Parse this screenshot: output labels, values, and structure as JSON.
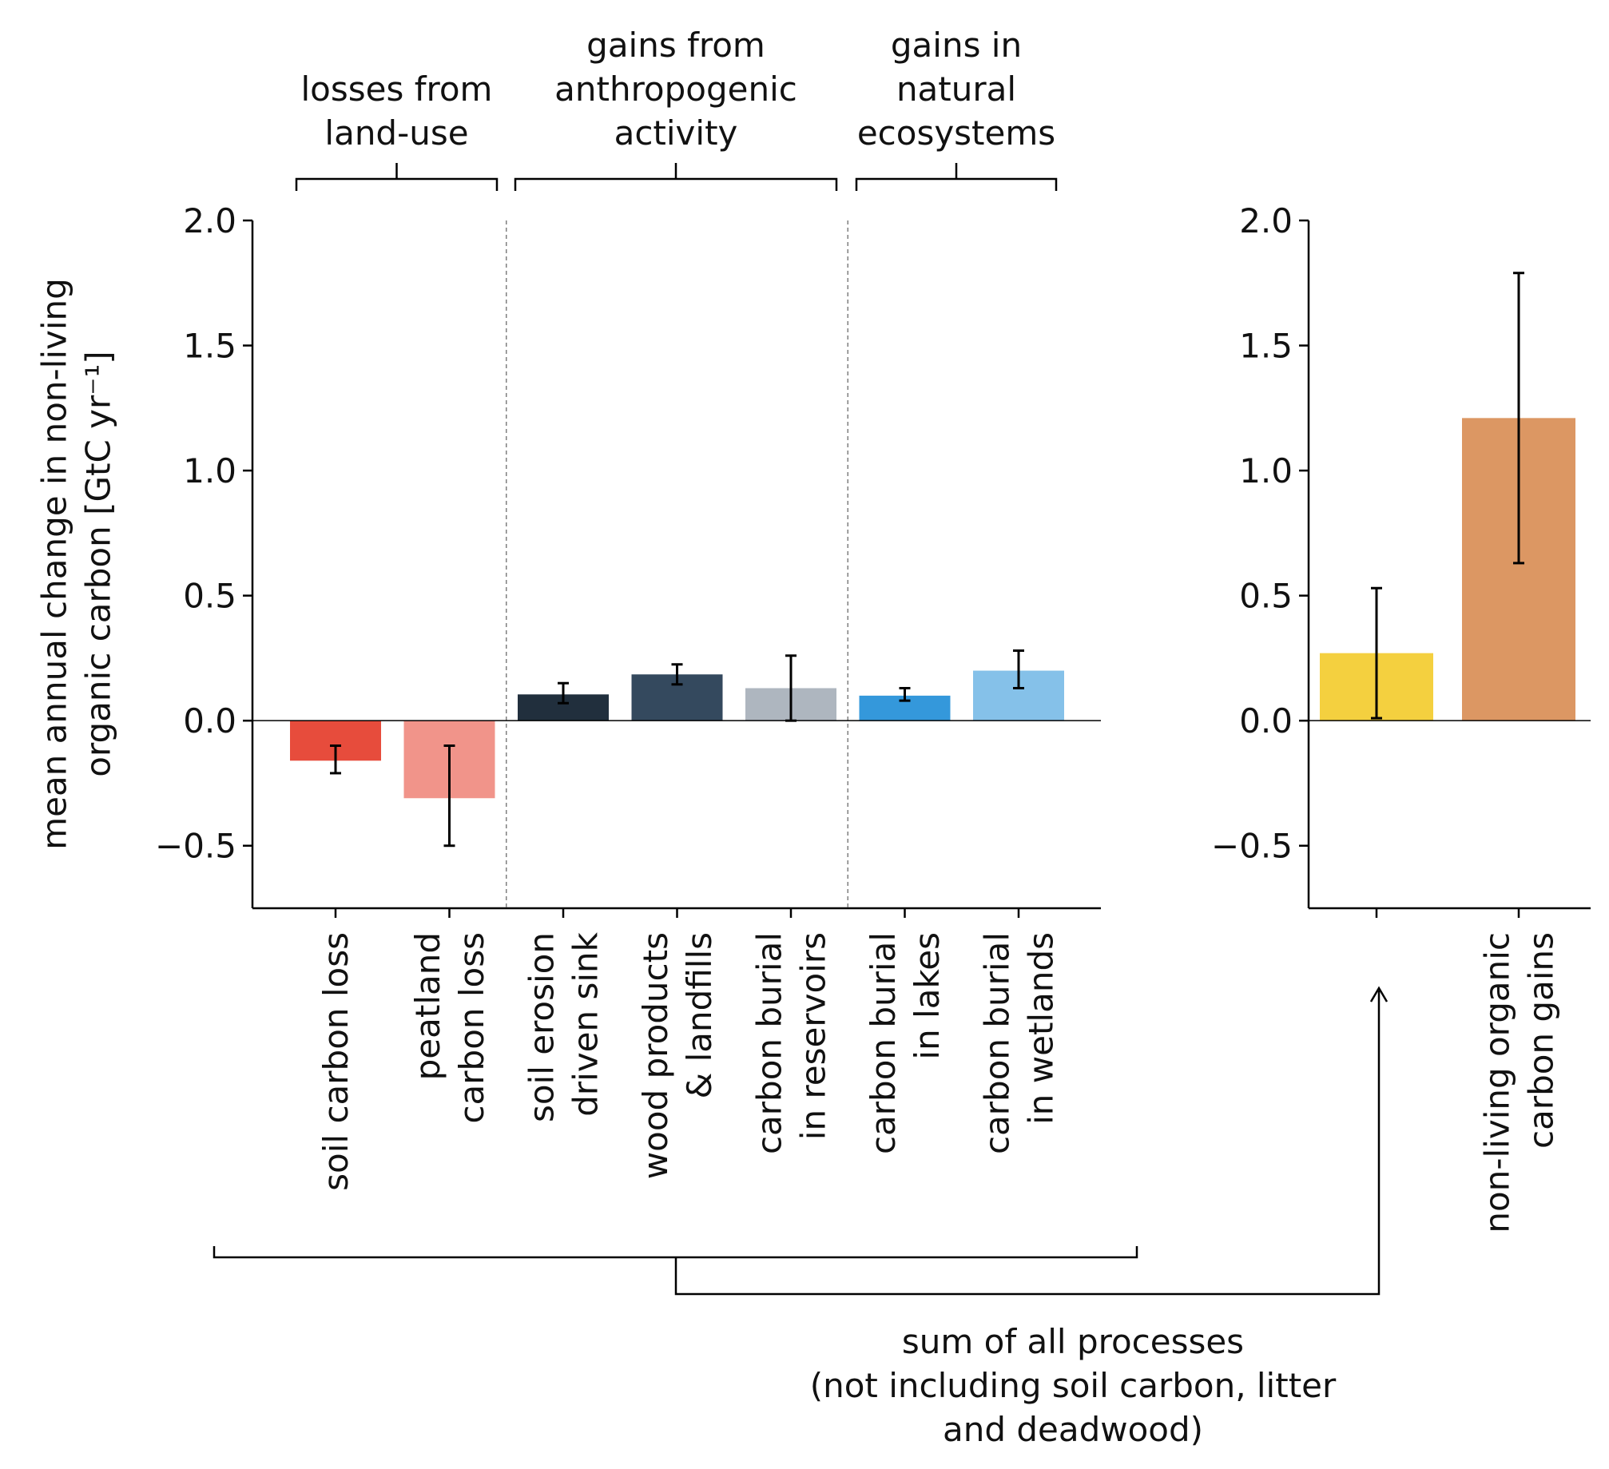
{
  "ylabel_lines": [
    "mean annual change in non-living",
    "organic carbon [GtC yr⁻¹]"
  ],
  "groups": [
    {
      "lines": [
        "losses from",
        "land-use"
      ]
    },
    {
      "lines": [
        "gains from",
        "anthropogenic",
        "activity"
      ]
    },
    {
      "lines": [
        "gains in",
        "natural",
        "ecosystems"
      ]
    }
  ],
  "sum_note_lines": [
    "sum of all processes",
    "(not including soil carbon, litter",
    "and deadwood)"
  ],
  "colors": {
    "axis": "#000000",
    "zero_line": "#000000",
    "divider": "#7f7f7f",
    "error_bar": "#000000"
  },
  "chart_data": [
    {
      "type": "bar",
      "ylim": [
        -0.75,
        2.0
      ],
      "yticks": [
        -0.5,
        0.0,
        0.5,
        1.0,
        1.5,
        2.0
      ],
      "ytick_labels": [
        "−0.5",
        "0.0",
        "0.5",
        "1.0",
        "1.5",
        "2.0"
      ],
      "group_dividers_after": [
        1,
        4
      ],
      "bars": [
        {
          "lines": [
            "soil carbon loss"
          ],
          "value": -0.16,
          "err_low": -0.21,
          "err_high": -0.1,
          "color": "#e74c3c"
        },
        {
          "lines": [
            "peatland",
            "carbon loss"
          ],
          "value": -0.31,
          "err_low": -0.5,
          "err_high": -0.1,
          "color": "#f1948a"
        },
        {
          "lines": [
            "soil erosion",
            "driven sink"
          ],
          "value": 0.105,
          "err_low": 0.07,
          "err_high": 0.15,
          "color": "#212f3d"
        },
        {
          "lines": [
            "wood products",
            "& landfills"
          ],
          "value": 0.185,
          "err_low": 0.145,
          "err_high": 0.225,
          "color": "#34495e"
        },
        {
          "lines": [
            "carbon burial",
            "in reservoirs"
          ],
          "value": 0.13,
          "err_low": 0.0,
          "err_high": 0.26,
          "color": "#aeb6bf"
        },
        {
          "lines": [
            "carbon burial",
            "in lakes"
          ],
          "value": 0.1,
          "err_low": 0.08,
          "err_high": 0.13,
          "color": "#3498db"
        },
        {
          "lines": [
            "carbon burial",
            "in wetlands"
          ],
          "value": 0.2,
          "err_low": 0.13,
          "err_high": 0.28,
          "color": "#85c1e9"
        }
      ]
    },
    {
      "type": "bar",
      "ylim": [
        -0.75,
        2.0
      ],
      "yticks": [
        -0.5,
        0.0,
        0.5,
        1.0,
        1.5,
        2.0
      ],
      "ytick_labels": [
        "−0.5",
        "0.0",
        "0.5",
        "1.0",
        "1.5",
        "2.0"
      ],
      "bars": [
        {
          "lines": [],
          "value": 0.27,
          "err_low": 0.01,
          "err_high": 0.53,
          "color": "#f4d03f"
        },
        {
          "lines": [
            "non-living organic",
            "carbon gains"
          ],
          "value": 1.21,
          "err_low": 0.63,
          "err_high": 1.79,
          "color": "#dc9763"
        }
      ]
    }
  ]
}
